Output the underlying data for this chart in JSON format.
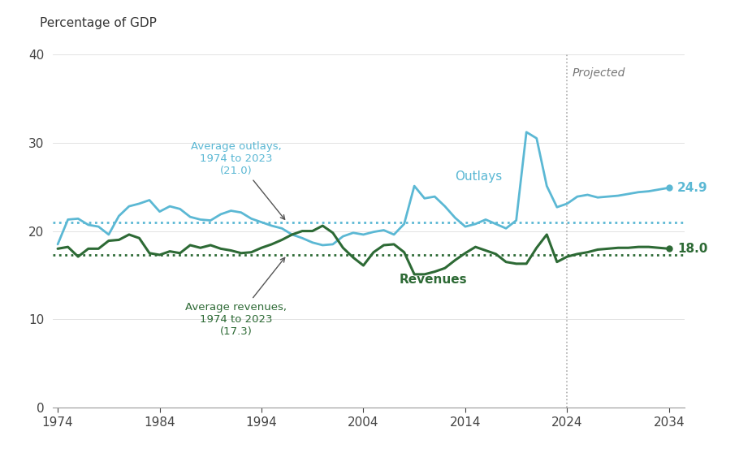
{
  "ylabel_text": "Percentage of GDP",
  "bg_color": "#ffffff",
  "outlays_color": "#5bb8d4",
  "revenues_color": "#2d6a35",
  "avg_outlays": 21.0,
  "avg_revenues": 17.3,
  "projected_year": 2024,
  "projected_label": "Projected",
  "end_outlays_label": "24.9",
  "end_revenues_label": "18.0",
  "outlays_label": "Outlays",
  "revenues_label": "Revenues",
  "avg_outlays_annotation": "Average outlays,\n1974 to 2023\n(21.0)",
  "avg_revenues_annotation": "Average revenues,\n1974 to 2023\n(17.3)",
  "years": [
    1974,
    1975,
    1976,
    1977,
    1978,
    1979,
    1980,
    1981,
    1982,
    1983,
    1984,
    1985,
    1986,
    1987,
    1988,
    1989,
    1990,
    1991,
    1992,
    1993,
    1994,
    1995,
    1996,
    1997,
    1998,
    1999,
    2000,
    2001,
    2002,
    2003,
    2004,
    2005,
    2006,
    2007,
    2008,
    2009,
    2010,
    2011,
    2012,
    2013,
    2014,
    2015,
    2016,
    2017,
    2018,
    2019,
    2020,
    2021,
    2022,
    2023,
    2024,
    2025,
    2026,
    2027,
    2028,
    2029,
    2030,
    2031,
    2032,
    2033,
    2034
  ],
  "outlays": [
    18.5,
    21.3,
    21.4,
    20.7,
    20.5,
    19.6,
    21.7,
    22.8,
    23.1,
    23.5,
    22.2,
    22.8,
    22.5,
    21.6,
    21.3,
    21.2,
    21.9,
    22.3,
    22.1,
    21.4,
    21.0,
    20.6,
    20.3,
    19.6,
    19.2,
    18.7,
    18.4,
    18.5,
    19.4,
    19.8,
    19.6,
    19.9,
    20.1,
    19.6,
    20.8,
    25.1,
    23.7,
    23.9,
    22.8,
    21.5,
    20.5,
    20.8,
    21.3,
    20.8,
    20.3,
    21.2,
    31.2,
    30.5,
    25.1,
    22.7,
    23.1,
    23.9,
    24.1,
    23.8,
    23.9,
    24.0,
    24.2,
    24.4,
    24.5,
    24.7,
    24.9
  ],
  "revenues": [
    18.0,
    18.2,
    17.1,
    18.0,
    18.0,
    18.9,
    19.0,
    19.6,
    19.2,
    17.5,
    17.3,
    17.7,
    17.5,
    18.4,
    18.1,
    18.4,
    18.0,
    17.8,
    17.5,
    17.6,
    18.1,
    18.5,
    19.0,
    19.6,
    20.0,
    20.0,
    20.6,
    19.8,
    18.1,
    17.0,
    16.1,
    17.6,
    18.4,
    18.5,
    17.6,
    15.1,
    15.1,
    15.4,
    15.8,
    16.7,
    17.5,
    18.2,
    17.8,
    17.4,
    16.5,
    16.3,
    16.3,
    18.1,
    19.6,
    16.5,
    17.1,
    17.4,
    17.6,
    17.9,
    18.0,
    18.1,
    18.1,
    18.2,
    18.2,
    18.1,
    18.0
  ],
  "xlim": [
    1973.5,
    2035.5
  ],
  "ylim": [
    0,
    40
  ],
  "yticks": [
    0,
    10,
    20,
    30,
    40
  ],
  "xticks": [
    1974,
    1984,
    1994,
    2004,
    2014,
    2024,
    2034
  ]
}
